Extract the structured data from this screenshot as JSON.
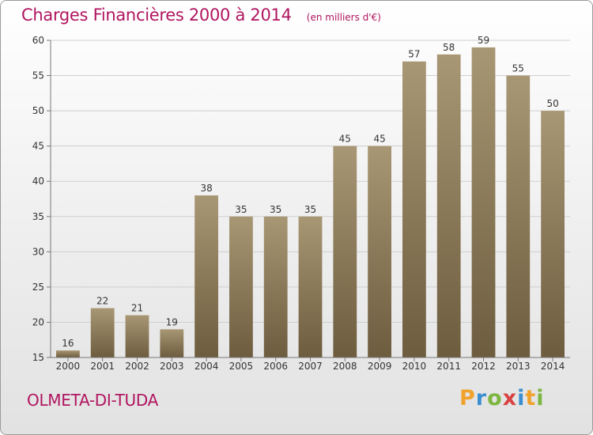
{
  "title": "Charges Financières 2000 à 2014",
  "subtitle": "(en milliers d'€)",
  "commune": "OLMETA-DI-TUDA",
  "logo": {
    "letters": [
      "P",
      "r",
      "o",
      "x",
      "i",
      "t",
      "i"
    ],
    "colors": [
      "#f0a22c",
      "#3b8fd1",
      "#7cb640",
      "#d94242",
      "#3b8fd1",
      "#f0a22c",
      "#7cb640"
    ]
  },
  "colors": {
    "accent": "#b0155f",
    "bar_top": "#a89774",
    "bar_bottom": "#6d5c3e",
    "grid": "#cfcfcf"
  },
  "chart_data": {
    "type": "bar",
    "categories": [
      "2000",
      "2001",
      "2002",
      "2003",
      "2004",
      "2005",
      "2006",
      "2007",
      "2008",
      "2009",
      "2010",
      "2011",
      "2012",
      "2013",
      "2014"
    ],
    "values": [
      16,
      22,
      21,
      19,
      38,
      35,
      35,
      35,
      45,
      45,
      57,
      58,
      59,
      55,
      50
    ],
    "yticks": [
      15,
      20,
      25,
      30,
      35,
      40,
      45,
      50,
      55,
      60
    ],
    "ylim": [
      15,
      60
    ],
    "title": "Charges Financières 2000 à 2014",
    "xlabel": "",
    "ylabel": "",
    "grid": true,
    "legend": "none"
  }
}
